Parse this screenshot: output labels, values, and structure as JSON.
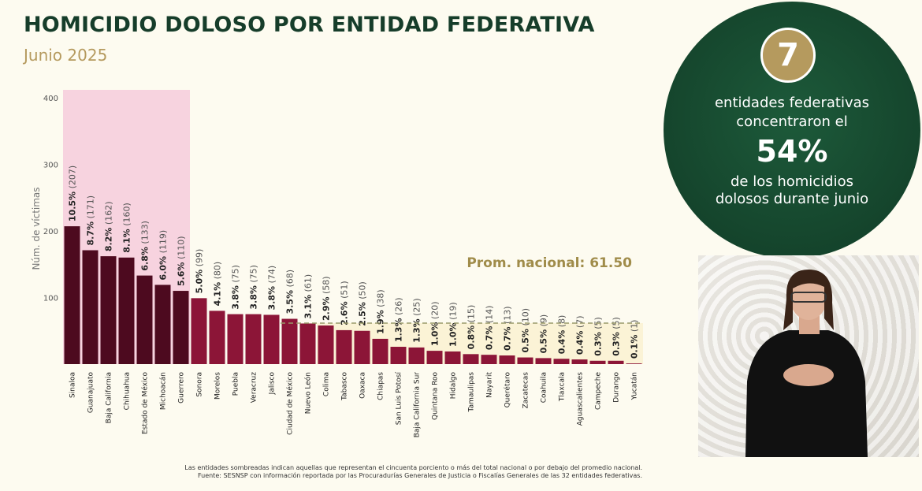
{
  "header": {
    "title": "HOMICIDIO DOLOSO POR ENTIDAD FEDERATIVA",
    "subtitle": "Junio 2025"
  },
  "chart_data": {
    "type": "bar",
    "ylabel": "Núm. de víctimas",
    "ylim": [
      0,
      400
    ],
    "yticks": [
      100,
      200,
      300,
      400
    ],
    "categories": [
      "Sinaloa",
      "Guanajuato",
      "Baja California",
      "Chihuahua",
      "Estado de México",
      "Michoacán",
      "Guerrero",
      "Sonora",
      "Morelos",
      "Puebla",
      "Veracruz",
      "Jalisco",
      "Ciudad de México",
      "Nuevo León",
      "Colima",
      "Tabasco",
      "Oaxaca",
      "Chiapas",
      "San Luis Potosí",
      "Baja California Sur",
      "Quintana Roo",
      "Hidalgo",
      "Tamaulipas",
      "Nayarit",
      "Querétaro",
      "Zacatecas",
      "Coahuila",
      "Tlaxcala",
      "Aguascalientes",
      "Campeche",
      "Durango",
      "Yucatán"
    ],
    "values": [
      207,
      171,
      162,
      160,
      133,
      119,
      110,
      99,
      80,
      75,
      75,
      74,
      68,
      61,
      58,
      51,
      50,
      38,
      26,
      25,
      20,
      19,
      15,
      14,
      13,
      10,
      9,
      8,
      7,
      5,
      5,
      1
    ],
    "percent_labels": [
      "10.5%",
      "8.7%",
      "8.2%",
      "8.1%",
      "6.8%",
      "6.0%",
      "5.6%",
      "5.0%",
      "4.1%",
      "3.8%",
      "3.8%",
      "3.8%",
      "3.5%",
      "3.1%",
      "2.9%",
      "2.6%",
      "2.5%",
      "1.9%",
      "1.3%",
      "1.3%",
      "1.0%",
      "1.0%",
      "0.8%",
      "0.7%",
      "0.7%",
      "0.5%",
      "0.5%",
      "0.4%",
      "0.4%",
      "0.3%",
      "0.3%",
      "0.1%"
    ],
    "count_labels": [
      "(207)",
      "(171)",
      "(162)",
      "(160)",
      "(133)",
      "(119)",
      "(110)",
      "(99)",
      "(80)",
      "(75)",
      "(75)",
      "(74)",
      "(68)",
      "(61)",
      "(58)",
      "(51)",
      "(50)",
      "(38)",
      "(26)",
      "(25)",
      "(20)",
      "(19)",
      "(15)",
      "(14)",
      "(13)",
      "(10)",
      "(9)",
      "(8)",
      "(7)",
      "(5)",
      "(5)",
      "(1)"
    ],
    "highlight_top_count": 7,
    "national_average": 61.5,
    "average_label": "Prom. nacional: 61.50",
    "colors": {
      "top": "#4d0a1f",
      "rest": "#8c1537",
      "top_shade": "#f7d3df",
      "below_shade": "#fbf3d6",
      "average_line": "#9a9a6a",
      "average_text": "#a08c4a"
    }
  },
  "footnote": {
    "line1": "Las entidades sombreadas indican aquellas que representan el cincuenta porciento o más del total nacional o por debajo del promedio nacional.",
    "line2": "Fuente: SESNSP con información reportada por las Procuradurías Generales de Justicia o Fiscalías Generales de las 32 entidades federativas."
  },
  "callout": {
    "number": "7",
    "line1": "entidades federativas",
    "line2": "concentraron el",
    "percent": "54%",
    "line3": "de los homicidios",
    "line4": "dolosos durante junio"
  }
}
